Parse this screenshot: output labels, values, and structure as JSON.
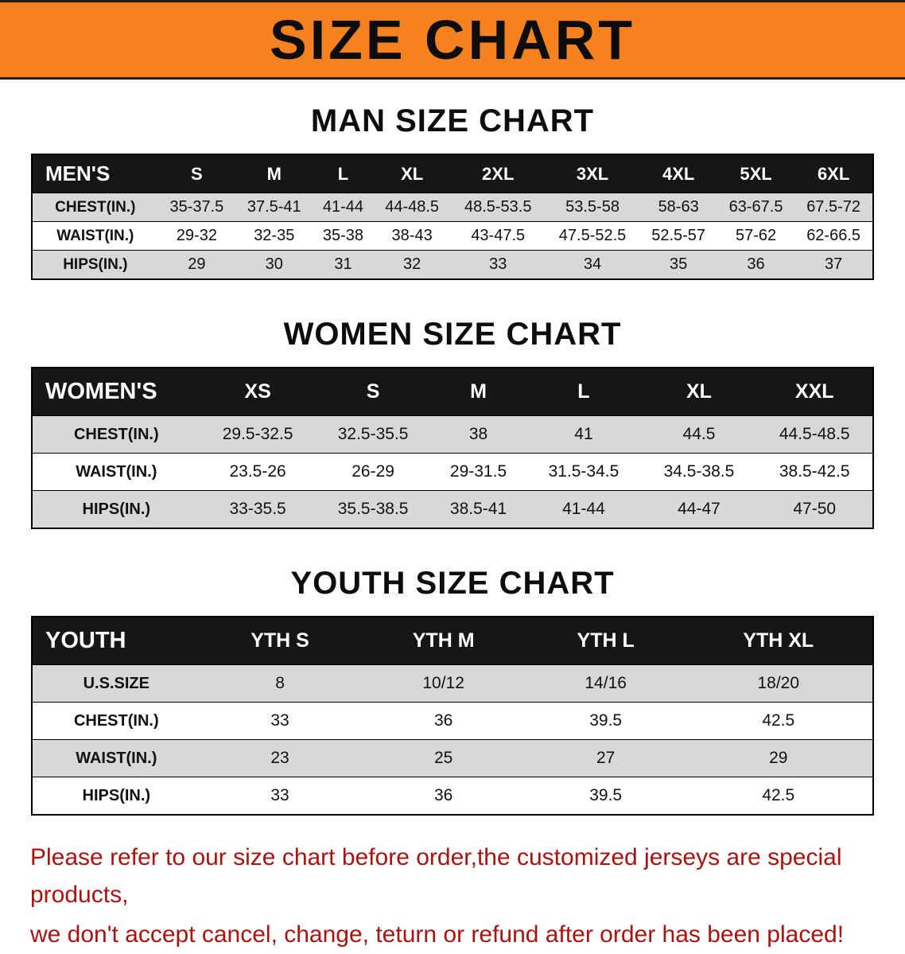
{
  "banner": {
    "title": "SIZE CHART"
  },
  "colors": {
    "banner-bg": "#F5821F",
    "table-header-bg": "#161616",
    "row-shade": "#D8D8D8",
    "disclaimer-red": "#A81410"
  },
  "chart_data": [
    {
      "type": "table",
      "title": "MAN SIZE CHART",
      "columns": [
        "MEN'S",
        "S",
        "M",
        "L",
        "XL",
        "2XL",
        "3XL",
        "4XL",
        "5XL",
        "6XL"
      ],
      "rows": [
        [
          "CHEST(IN.)",
          "35-37.5",
          "37.5-41",
          "41-44",
          "44-48.5",
          "48.5-53.5",
          "53.5-58",
          "58-63",
          "63-67.5",
          "67.5-72"
        ],
        [
          "WAIST(IN.)",
          "29-32",
          "32-35",
          "35-38",
          "38-43",
          "43-47.5",
          "47.5-52.5",
          "52.5-57",
          "57-62",
          "62-66.5"
        ],
        [
          "HIPS(IN.)",
          "29",
          "30",
          "31",
          "32",
          "33",
          "34",
          "35",
          "36",
          "37"
        ]
      ]
    },
    {
      "type": "table",
      "title": "WOMEN SIZE CHART",
      "columns": [
        "WOMEN'S",
        "XS",
        "S",
        "M",
        "L",
        "XL",
        "XXL"
      ],
      "rows": [
        [
          "CHEST(IN.)",
          "29.5-32.5",
          "32.5-35.5",
          "38",
          "41",
          "44.5",
          "44.5-48.5"
        ],
        [
          "WAIST(IN.)",
          "23.5-26",
          "26-29",
          "29-31.5",
          "31.5-34.5",
          "34.5-38.5",
          "38.5-42.5"
        ],
        [
          "HIPS(IN.)",
          "33-35.5",
          "35.5-38.5",
          "38.5-41",
          "41-44",
          "44-47",
          "47-50"
        ]
      ]
    },
    {
      "type": "table",
      "title": "YOUTH SIZE CHART",
      "columns": [
        "YOUTH",
        "YTH S",
        "YTH M",
        "YTH L",
        "YTH XL"
      ],
      "rows": [
        [
          "U.S.SIZE",
          "8",
          "10/12",
          "14/16",
          "18/20"
        ],
        [
          "CHEST(IN.)",
          "33",
          "36",
          "39.5",
          "42.5"
        ],
        [
          "WAIST(IN.)",
          "23",
          "25",
          "27",
          "29"
        ],
        [
          "HIPS(IN.)",
          "33",
          "36",
          "39.5",
          "42.5"
        ]
      ]
    }
  ],
  "footer": {
    "line1": "Please refer to our size chart before order,the customized jerseys are special products,",
    "line2": "we don't accept cancel, change, teturn or refund after order has been placed!"
  }
}
